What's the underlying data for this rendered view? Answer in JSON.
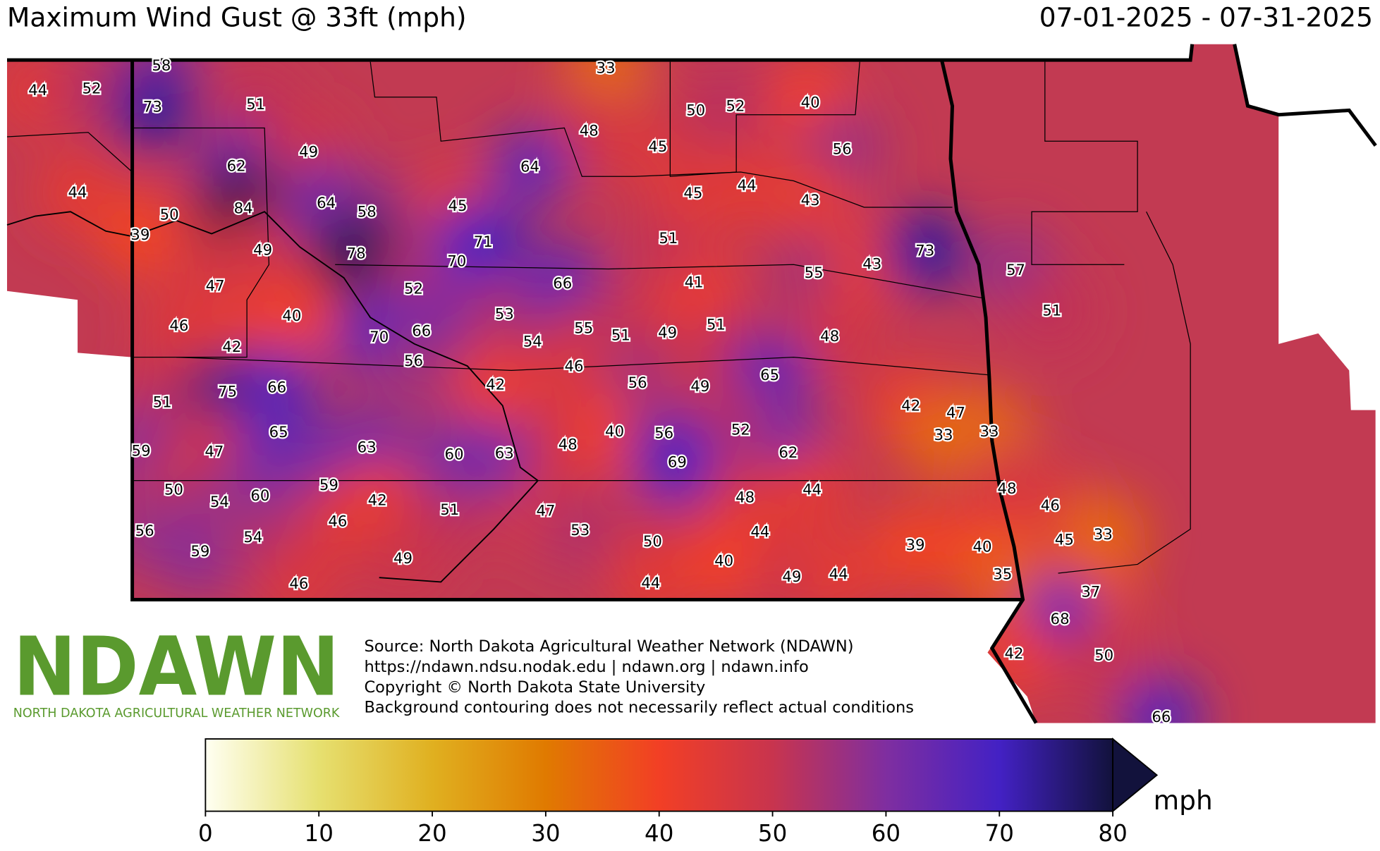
{
  "map": {
    "title": "Maximum Wind Gust @ 33ft (mph)",
    "date_range": "07-01-2025 - 07-31-2025",
    "station_values": [
      44,
      52,
      58,
      73,
      51,
      62,
      44,
      50,
      84,
      39,
      49,
      49,
      64,
      58,
      78,
      47,
      40,
      46,
      42,
      51,
      75,
      66,
      59,
      47,
      65,
      50,
      54,
      60,
      56,
      59,
      54,
      59,
      46,
      46,
      63,
      42,
      49,
      51,
      60,
      63,
      47,
      53,
      48,
      33,
      48,
      45,
      50,
      52,
      40,
      56,
      64,
      45,
      71,
      70,
      52,
      70,
      66,
      56,
      53,
      54,
      66,
      55,
      51,
      49,
      51,
      41,
      51,
      45,
      44,
      43,
      55,
      43,
      73,
      57,
      51,
      48,
      46,
      42,
      56,
      49,
      65,
      40,
      56,
      52,
      62,
      69,
      48,
      44,
      44,
      50,
      40,
      44,
      49,
      44,
      42,
      47,
      33,
      33,
      48,
      46,
      45,
      33,
      39,
      40,
      35,
      37,
      68,
      42,
      50,
      66
    ],
    "colorbar": {
      "lim": [
        0,
        80
      ],
      "ticks": [
        0,
        10,
        20,
        30,
        40,
        50,
        60,
        70,
        80
      ],
      "colors": [
        "#fffff2",
        "#e6e070",
        "#e0b020",
        "#e07a00",
        "#f23f25",
        "#c8344e",
        "#7f2ea0",
        "#4321c4",
        "#12123c"
      ],
      "label": "mph"
    },
    "logo": {
      "title": "NDAWN",
      "subtitle": "NORTH DAKOTA AGRICULTURAL WEATHER NETWORK"
    },
    "source": [
      "Source: North Dakota Agricultural Weather Network (NDAWN)",
      "https://ndawn.ndsu.nodak.edu | ndawn.org | ndawn.info",
      "Copyright © North Dakota State University",
      "Background contouring does not necessarily reflect actual conditions"
    ]
  }
}
